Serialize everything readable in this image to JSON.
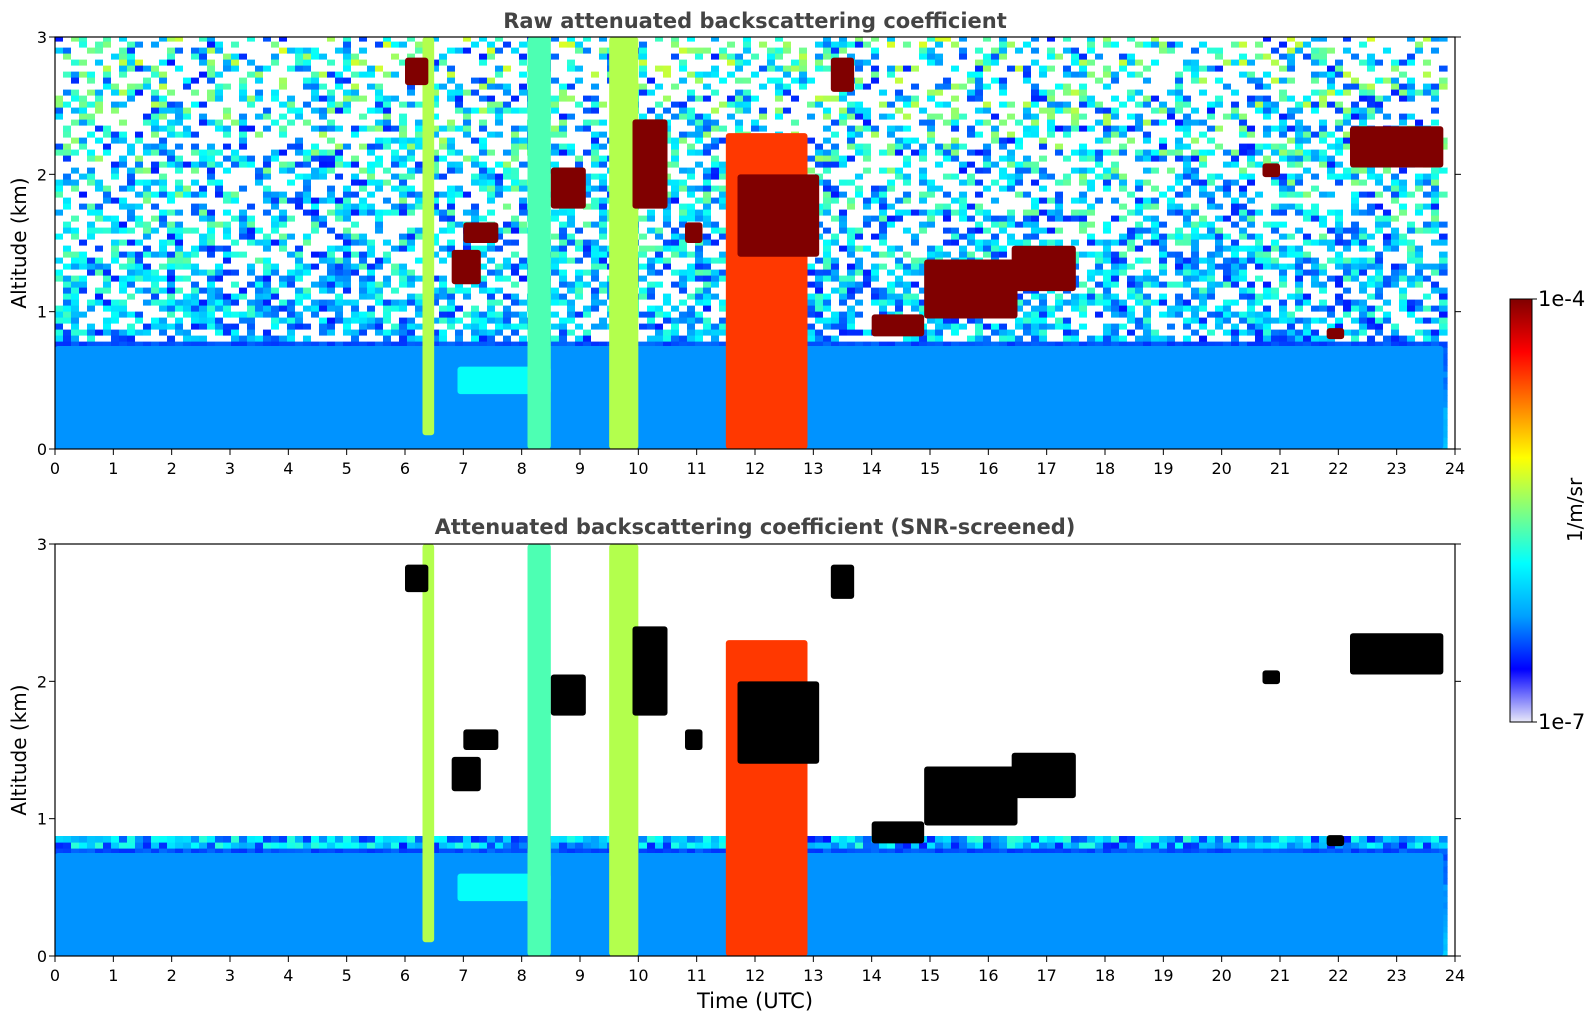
{
  "chart_data": [
    {
      "type": "heatmap",
      "title": "Raw attenuated backscattering coefficient",
      "xlabel": "",
      "ylabel": "Altitude (km)",
      "xlim": [
        0,
        24
      ],
      "ylim": [
        0,
        3
      ],
      "xticks": [
        "0",
        "1",
        "2",
        "3",
        "4",
        "5",
        "6",
        "7",
        "8",
        "9",
        "10",
        "11",
        "12",
        "13",
        "14",
        "15",
        "16",
        "17",
        "18",
        "19",
        "20",
        "21",
        "22",
        "23",
        "24"
      ],
      "yticks": [
        "0",
        "1",
        "2",
        "3"
      ],
      "screened": false,
      "layers": [
        {
          "name": "boundary-layer",
          "t0": 0,
          "t1": 23.8,
          "h0": 0,
          "h1": 0.75,
          "v": 0.24
        },
        {
          "name": "aerosol-lift",
          "t0": 6.9,
          "t1": 8.5,
          "h0": 0.4,
          "h1": 0.6,
          "v": 0.38
        },
        {
          "name": "precip-shaft-1",
          "t0": 6.3,
          "t1": 6.5,
          "h0": 0.1,
          "h1": 3.0,
          "v": 0.55
        },
        {
          "name": "precip-shaft-2",
          "t0": 8.1,
          "t1": 8.5,
          "h0": 0,
          "h1": 3.0,
          "v": 0.45
        },
        {
          "name": "precip-shaft-3",
          "t0": 9.5,
          "t1": 10.0,
          "h0": 0,
          "h1": 3.0,
          "v": 0.55
        },
        {
          "name": "rain-core",
          "t0": 11.5,
          "t1": 12.9,
          "h0": 0,
          "h1": 2.3,
          "v": 0.82
        },
        {
          "name": "cloud-a",
          "t0": 6.0,
          "t1": 6.4,
          "h0": 2.65,
          "h1": 2.85,
          "v": 1.0
        },
        {
          "name": "cloud-b",
          "t0": 6.8,
          "t1": 7.3,
          "h0": 1.2,
          "h1": 1.45,
          "v": 1.0
        },
        {
          "name": "cloud-c",
          "t0": 7.0,
          "t1": 7.6,
          "h0": 1.5,
          "h1": 1.65,
          "v": 1.0
        },
        {
          "name": "cloud-d",
          "t0": 8.5,
          "t1": 9.1,
          "h0": 1.75,
          "h1": 2.05,
          "v": 1.0
        },
        {
          "name": "cloud-e",
          "t0": 9.9,
          "t1": 10.5,
          "h0": 1.75,
          "h1": 2.4,
          "v": 1.0
        },
        {
          "name": "cloud-f",
          "t0": 10.8,
          "t1": 11.1,
          "h0": 1.5,
          "h1": 1.65,
          "v": 1.0
        },
        {
          "name": "cloud-g",
          "t0": 11.7,
          "t1": 13.1,
          "h0": 1.4,
          "h1": 2.0,
          "v": 1.0
        },
        {
          "name": "cloud-h",
          "t0": 13.3,
          "t1": 13.7,
          "h0": 2.6,
          "h1": 2.85,
          "v": 1.0
        },
        {
          "name": "cloud-i",
          "t0": 14.0,
          "t1": 14.9,
          "h0": 0.82,
          "h1": 0.98,
          "v": 1.0
        },
        {
          "name": "cloud-j",
          "t0": 14.9,
          "t1": 16.5,
          "h0": 0.95,
          "h1": 1.38,
          "v": 1.0
        },
        {
          "name": "cloud-k",
          "t0": 16.4,
          "t1": 17.5,
          "h0": 1.15,
          "h1": 1.48,
          "v": 1.0
        },
        {
          "name": "cloud-l",
          "t0": 20.7,
          "t1": 21.0,
          "h0": 1.98,
          "h1": 2.08,
          "v": 1.0
        },
        {
          "name": "cloud-m",
          "t0": 21.8,
          "t1": 22.1,
          "h0": 0.8,
          "h1": 0.88,
          "v": 1.0
        },
        {
          "name": "cloud-n",
          "t0": 22.2,
          "t1": 23.8,
          "h0": 2.05,
          "h1": 2.35,
          "v": 1.0
        }
      ]
    },
    {
      "type": "heatmap",
      "title": "Attenuated backscattering coefficient (SNR-screened)",
      "xlabel": "Time (UTC)",
      "ylabel": "Altitude (km)",
      "xlim": [
        0,
        24
      ],
      "ylim": [
        0,
        3
      ],
      "xticks": [
        "0",
        "1",
        "2",
        "3",
        "4",
        "5",
        "6",
        "7",
        "8",
        "9",
        "10",
        "11",
        "12",
        "13",
        "14",
        "15",
        "16",
        "17",
        "18",
        "19",
        "20",
        "21",
        "22",
        "23",
        "24"
      ],
      "yticks": [
        "0",
        "1",
        "2",
        "3"
      ],
      "screened": true,
      "layers": [
        {
          "name": "boundary-layer",
          "t0": 0,
          "t1": 23.8,
          "h0": 0,
          "h1": 0.75,
          "v": 0.24
        },
        {
          "name": "aerosol-lift",
          "t0": 6.9,
          "t1": 8.5,
          "h0": 0.4,
          "h1": 0.6,
          "v": 0.38
        },
        {
          "name": "precip-shaft-1",
          "t0": 6.3,
          "t1": 6.5,
          "h0": 0.1,
          "h1": 3.0,
          "v": 0.55
        },
        {
          "name": "precip-shaft-2",
          "t0": 8.1,
          "t1": 8.5,
          "h0": 0,
          "h1": 3.0,
          "v": 0.45
        },
        {
          "name": "precip-shaft-3",
          "t0": 9.5,
          "t1": 10.0,
          "h0": 0,
          "h1": 3.0,
          "v": 0.55
        },
        {
          "name": "rain-core",
          "t0": 11.5,
          "t1": 12.9,
          "h0": 0,
          "h1": 2.3,
          "v": 0.82
        },
        {
          "name": "cloud-a",
          "t0": 6.0,
          "t1": 6.4,
          "h0": 2.65,
          "h1": 2.85,
          "v": 1.0
        },
        {
          "name": "cloud-b",
          "t0": 6.8,
          "t1": 7.3,
          "h0": 1.2,
          "h1": 1.45,
          "v": 1.0
        },
        {
          "name": "cloud-c",
          "t0": 7.0,
          "t1": 7.6,
          "h0": 1.5,
          "h1": 1.65,
          "v": 1.0
        },
        {
          "name": "cloud-d",
          "t0": 8.5,
          "t1": 9.1,
          "h0": 1.75,
          "h1": 2.05,
          "v": 1.0
        },
        {
          "name": "cloud-e",
          "t0": 9.9,
          "t1": 10.5,
          "h0": 1.75,
          "h1": 2.4,
          "v": 1.0
        },
        {
          "name": "cloud-f",
          "t0": 10.8,
          "t1": 11.1,
          "h0": 1.5,
          "h1": 1.65,
          "v": 1.0
        },
        {
          "name": "cloud-g",
          "t0": 11.7,
          "t1": 13.1,
          "h0": 1.4,
          "h1": 2.0,
          "v": 1.0
        },
        {
          "name": "cloud-h",
          "t0": 13.3,
          "t1": 13.7,
          "h0": 2.6,
          "h1": 2.85,
          "v": 1.0
        },
        {
          "name": "cloud-i",
          "t0": 14.0,
          "t1": 14.9,
          "h0": 0.82,
          "h1": 0.98,
          "v": 1.0
        },
        {
          "name": "cloud-j",
          "t0": 14.9,
          "t1": 16.5,
          "h0": 0.95,
          "h1": 1.38,
          "v": 1.0
        },
        {
          "name": "cloud-k",
          "t0": 16.4,
          "t1": 17.5,
          "h0": 1.15,
          "h1": 1.48,
          "v": 1.0
        },
        {
          "name": "cloud-l",
          "t0": 20.7,
          "t1": 21.0,
          "h0": 1.98,
          "h1": 2.08,
          "v": 1.0
        },
        {
          "name": "cloud-m",
          "t0": 21.8,
          "t1": 22.1,
          "h0": 0.8,
          "h1": 0.88,
          "v": 1.0
        },
        {
          "name": "cloud-n",
          "t0": 22.2,
          "t1": 23.8,
          "h0": 2.05,
          "h1": 2.35,
          "v": 1.0
        }
      ]
    }
  ],
  "colorbar": {
    "label": "1/m/sr",
    "max_label": "1e-4",
    "min_label": "1e-7",
    "colormap": "jet",
    "stops": [
      "#e8e8f8",
      "#0000ff",
      "#00a0ff",
      "#00ffff",
      "#80ff80",
      "#ffff00",
      "#ff8000",
      "#ff0000",
      "#800000"
    ]
  },
  "screen_colors": {
    "screened_out": "#ffffff",
    "saturated": "#000000"
  }
}
